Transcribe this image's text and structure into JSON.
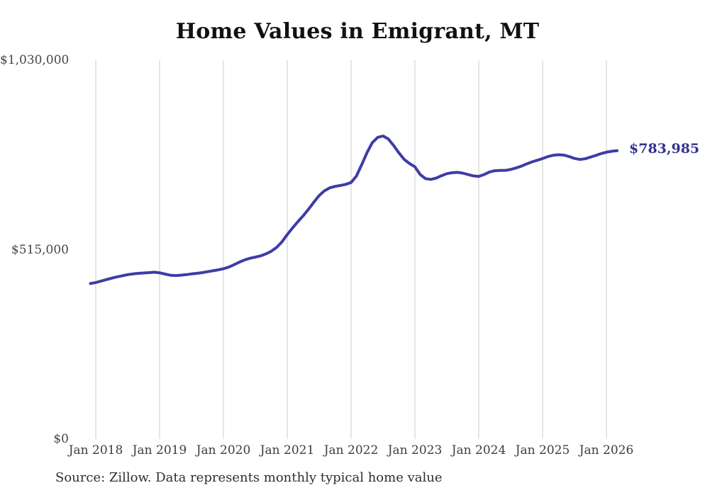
{
  "chart_data": {
    "type": "line",
    "title": "Home Values in Emigrant, MT",
    "series_name": "Monthly typical home value",
    "x": [
      "Dec 2017",
      "Jan 2018",
      "Feb 2018",
      "Mar 2018",
      "Apr 2018",
      "May 2018",
      "Jun 2018",
      "Jul 2018",
      "Aug 2018",
      "Sep 2018",
      "Oct 2018",
      "Nov 2018",
      "Dec 2018",
      "Jan 2019",
      "Feb 2019",
      "Mar 2019",
      "Apr 2019",
      "May 2019",
      "Jun 2019",
      "Jul 2019",
      "Aug 2019",
      "Sep 2019",
      "Oct 2019",
      "Nov 2019",
      "Dec 2019",
      "Jan 2020",
      "Feb 2020",
      "Mar 2020",
      "Apr 2020",
      "May 2020",
      "Jun 2020",
      "Jul 2020",
      "Aug 2020",
      "Sep 2020",
      "Oct 2020",
      "Nov 2020",
      "Dec 2020",
      "Jan 2021",
      "Feb 2021",
      "Mar 2021",
      "Apr 2021",
      "May 2021",
      "Jun 2021",
      "Jul 2021",
      "Aug 2021",
      "Sep 2021",
      "Oct 2021",
      "Nov 2021",
      "Dec 2021",
      "Jan 2022",
      "Feb 2022",
      "Mar 2022",
      "Apr 2022",
      "May 2022",
      "Jun 2022",
      "Jul 2022",
      "Aug 2022",
      "Sep 2022",
      "Oct 2022",
      "Nov 2022",
      "Dec 2022",
      "Jan 2023",
      "Feb 2023",
      "Mar 2023",
      "Apr 2023",
      "May 2023",
      "Jun 2023",
      "Jul 2023",
      "Aug 2023",
      "Sep 2023",
      "Oct 2023",
      "Nov 2023",
      "Dec 2023",
      "Jan 2024",
      "Feb 2024",
      "Mar 2024",
      "Apr 2024",
      "May 2024",
      "Jun 2024",
      "Jul 2024",
      "Aug 2024",
      "Sep 2024",
      "Oct 2024",
      "Nov 2024",
      "Dec 2024",
      "Jan 2025",
      "Feb 2025",
      "Mar 2025",
      "Apr 2025",
      "May 2025",
      "Jun 2025",
      "Jul 2025",
      "Aug 2025",
      "Sep 2025",
      "Oct 2025",
      "Nov 2025",
      "Dec 2025",
      "Jan 2026",
      "Feb 2026",
      "Mar 2026"
    ],
    "values": [
      423000,
      425500,
      429500,
      433500,
      437500,
      441000,
      444000,
      447000,
      449000,
      450500,
      451500,
      452500,
      453500,
      452000,
      448500,
      445500,
      444500,
      445500,
      447000,
      449000,
      450500,
      452500,
      455000,
      457500,
      460000,
      463000,
      467500,
      474000,
      481000,
      487000,
      491500,
      494500,
      498000,
      503500,
      510500,
      521000,
      536000,
      556000,
      574000,
      591000,
      607000,
      625000,
      644000,
      662000,
      675000,
      683000,
      687000,
      689500,
      692500,
      697500,
      715000,
      746000,
      779000,
      806000,
      820000,
      824000,
      816000,
      798000,
      778000,
      760000,
      749000,
      740000,
      719000,
      708000,
      706000,
      709500,
      716000,
      721500,
      724000,
      725000,
      723000,
      719000,
      715500,
      714000,
      719000,
      726000,
      729500,
      730500,
      730500,
      733000,
      737000,
      742000,
      748000,
      753500,
      758000,
      762500,
      768000,
      771500,
      773000,
      772000,
      768000,
      763000,
      760000,
      762000,
      766500,
      771000,
      776000,
      780000,
      782500,
      783985
    ],
    "x_tick_labels": [
      "Jan 2018",
      "Jan 2019",
      "Jan 2020",
      "Jan 2021",
      "Jan 2022",
      "Jan 2023",
      "Jan 2024",
      "Jan 2025",
      "Jan 2026"
    ],
    "y_ticks": [
      0,
      515000,
      1030000
    ],
    "y_tick_labels": [
      "$0",
      "$515,000",
      "$1,030,000"
    ],
    "ylim": [
      0,
      1030000
    ],
    "grid": "vertical-only",
    "legend": "none",
    "end_label": "$783,985",
    "last_value": 783985,
    "source_note": "Source: Zillow. Data represents monthly typical home value",
    "colors": {
      "line": "#3e3ca6",
      "end_label": "#34328c",
      "gridline": "#cccccc",
      "title": "#111111",
      "axis_text": "#3d3d3d",
      "source_text": "#2f2f2f"
    }
  }
}
